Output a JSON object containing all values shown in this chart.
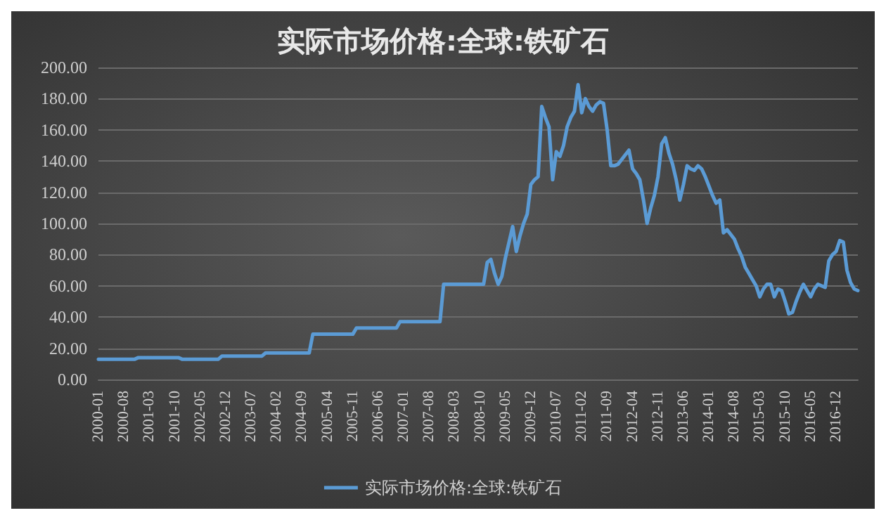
{
  "chart_data": {
    "type": "line",
    "title": "实际市场价格:全球:铁矿石",
    "categories": [
      "2000-01",
      null,
      null,
      null,
      null,
      null,
      null,
      "2000-08",
      null,
      null,
      null,
      null,
      null,
      null,
      "2001-03",
      null,
      null,
      null,
      null,
      null,
      null,
      "2001-10",
      null,
      null,
      null,
      null,
      null,
      null,
      "2002-05",
      null,
      null,
      null,
      null,
      null,
      null,
      "2002-12",
      null,
      null,
      null,
      null,
      null,
      null,
      "2003-07",
      null,
      null,
      null,
      null,
      null,
      null,
      "2004-02",
      null,
      null,
      null,
      null,
      null,
      null,
      "2004-09",
      null,
      null,
      null,
      null,
      null,
      null,
      "2005-04",
      null,
      null,
      null,
      null,
      null,
      null,
      "2005-11",
      null,
      null,
      null,
      null,
      null,
      null,
      "2006-06",
      null,
      null,
      null,
      null,
      null,
      null,
      "2007-01",
      null,
      null,
      null,
      null,
      null,
      null,
      "2007-08",
      null,
      null,
      null,
      null,
      null,
      null,
      "2008-03",
      null,
      null,
      null,
      null,
      null,
      null,
      "2008-10",
      null,
      null,
      null,
      null,
      null,
      null,
      "2009-05",
      null,
      null,
      null,
      null,
      null,
      null,
      "2009-12",
      null,
      null,
      null,
      null,
      null,
      null,
      "2010-07",
      null,
      null,
      null,
      null,
      null,
      null,
      "2011-02",
      null,
      null,
      null,
      null,
      null,
      null,
      "2011-09",
      null,
      null,
      null,
      null,
      null,
      null,
      "2012-04",
      null,
      null,
      null,
      null,
      null,
      null,
      "2012-11",
      null,
      null,
      null,
      null,
      null,
      null,
      "2013-06",
      null,
      null,
      null,
      null,
      null,
      null,
      "2014-01",
      null,
      null,
      null,
      null,
      null,
      null,
      "2014-08",
      null,
      null,
      null,
      null,
      null,
      null,
      "2015-03",
      null,
      null,
      null,
      null,
      null,
      null,
      "2015-10",
      null,
      null,
      null,
      null,
      null,
      null,
      "2016-05",
      null,
      null,
      null,
      null,
      null,
      null,
      "2016-12",
      null,
      null,
      null,
      null,
      null,
      null
    ],
    "series": [
      {
        "name": "实际市场价格:全球:铁矿石",
        "color": "#5b9bd5",
        "values": [
          13,
          13,
          13,
          13,
          13,
          13,
          13,
          13,
          13,
          13,
          13,
          14,
          14,
          14,
          14,
          14,
          14,
          14,
          14,
          14,
          14,
          14,
          14,
          13,
          13,
          13,
          13,
          13,
          13,
          13,
          13,
          13,
          13,
          13,
          15,
          15,
          15,
          15,
          15,
          15,
          15,
          15,
          15,
          15,
          15,
          15,
          17,
          17,
          17,
          17,
          17,
          17,
          17,
          17,
          17,
          17,
          17,
          17,
          17,
          29,
          29,
          29,
          29,
          29,
          29,
          29,
          29,
          29,
          29,
          29,
          29,
          33,
          33,
          33,
          33,
          33,
          33,
          33,
          33,
          33,
          33,
          33,
          33,
          37,
          37,
          37,
          37,
          37,
          37,
          37,
          37,
          37,
          37,
          37,
          37,
          61,
          61,
          61,
          61,
          61,
          61,
          61,
          61,
          61,
          61,
          61,
          61,
          75,
          77,
          68,
          61,
          66,
          78,
          88,
          98,
          82,
          92,
          100,
          106,
          125,
          128,
          130,
          175,
          168,
          162,
          128,
          146,
          143,
          150,
          162,
          168,
          172,
          189,
          171,
          180,
          175,
          172,
          176,
          178,
          177,
          160,
          137,
          137,
          138,
          141,
          144,
          147,
          135,
          132,
          128,
          115,
          100,
          110,
          118,
          130,
          151,
          155,
          145,
          138,
          128,
          115,
          125,
          137,
          135,
          134,
          137,
          135,
          130,
          124,
          118,
          113,
          115,
          94,
          96,
          93,
          90,
          84,
          79,
          72,
          68,
          64,
          60,
          53,
          58,
          61,
          61,
          53,
          58,
          57,
          50,
          42,
          43,
          50,
          56,
          61,
          57,
          53,
          58,
          61,
          60,
          59,
          76,
          80,
          82,
          89,
          88,
          70,
          62,
          58,
          57
        ]
      }
    ],
    "ylim": [
      0,
      200
    ],
    "yticks": [
      {
        "value": 0,
        "label": "0.00"
      },
      {
        "value": 20,
        "label": "20.00"
      },
      {
        "value": 40,
        "label": "40.00"
      },
      {
        "value": 60,
        "label": "60.00"
      },
      {
        "value": 80,
        "label": "80.00"
      },
      {
        "value": 100,
        "label": "100.00"
      },
      {
        "value": 120,
        "label": "120.00"
      },
      {
        "value": 140,
        "label": "140.00"
      },
      {
        "value": 160,
        "label": "160.00"
      },
      {
        "value": 180,
        "label": "180.00"
      },
      {
        "value": 200,
        "label": "200.00"
      }
    ],
    "grid": "y",
    "legend": "bottom"
  }
}
